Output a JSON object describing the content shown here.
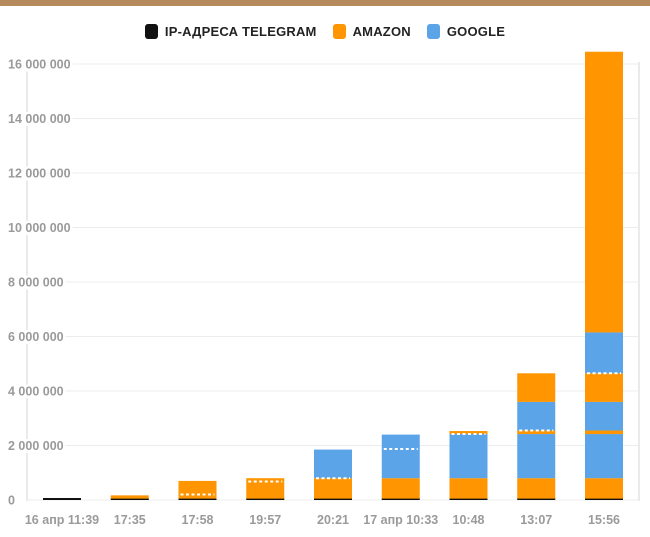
{
  "chart_data": {
    "type": "bar",
    "stacked": true,
    "title": "",
    "xlabel": "",
    "ylabel": "",
    "ylim": [
      0,
      16000000
    ],
    "yticks": [
      0,
      2000000,
      4000000,
      6000000,
      8000000,
      10000000,
      12000000,
      14000000,
      16000000
    ],
    "ytick_labels": [
      "0",
      "2 000 000",
      "4 000 000",
      "6 000 000",
      "8 000 000",
      "10 000 000",
      "12 000 000",
      "14 000 000",
      "16 000 000"
    ],
    "grid": true,
    "legend_position": "top-center",
    "legend": [
      {
        "name": "IP-АДРЕСА TELEGRAM",
        "color": "#111111"
      },
      {
        "name": "AMAZON",
        "color": "#ff9500"
      },
      {
        "name": "GOOGLE",
        "color": "#5ba4e8"
      }
    ],
    "categories": [
      "16 апр 11:39",
      "17:35",
      "17:58",
      "19:57",
      "20:21",
      "17 апр 10:33",
      "10:48",
      "13:07",
      "15:56"
    ],
    "bars": [
      {
        "segments": [
          {
            "series": "IP-АДРЕСА TELEGRAM",
            "value": 50000
          }
        ],
        "dotted_at": null
      },
      {
        "segments": [
          {
            "series": "IP-АДРЕСА TELEGRAM",
            "value": 50000
          },
          {
            "series": "AMAZON",
            "value": 120000
          }
        ],
        "dotted_at": null
      },
      {
        "segments": [
          {
            "series": "IP-АДРЕСА TELEGRAM",
            "value": 50000
          },
          {
            "series": "AMAZON",
            "value": 650000
          }
        ],
        "dotted_at": 200000
      },
      {
        "segments": [
          {
            "series": "IP-АДРЕСА TELEGRAM",
            "value": 50000
          },
          {
            "series": "AMAZON",
            "value": 750000
          }
        ],
        "dotted_at": 680000
      },
      {
        "segments": [
          {
            "series": "IP-АДРЕСА TELEGRAM",
            "value": 50000
          },
          {
            "series": "AMAZON",
            "value": 750000
          },
          {
            "series": "GOOGLE",
            "value": 1050000
          }
        ],
        "dotted_at": 800000
      },
      {
        "segments": [
          {
            "series": "IP-АДРЕСА TELEGRAM",
            "value": 50000
          },
          {
            "series": "AMAZON",
            "value": 750000
          },
          {
            "series": "GOOGLE",
            "value": 1600000
          }
        ],
        "dotted_at": 1870000
      },
      {
        "segments": [
          {
            "series": "IP-АДРЕСА TELEGRAM",
            "value": 50000
          },
          {
            "series": "AMAZON",
            "value": 750000
          },
          {
            "series": "GOOGLE",
            "value": 1620000
          },
          {
            "series": "AMAZON",
            "value": 110000
          }
        ],
        "dotted_at": 2420000
      },
      {
        "segments": [
          {
            "series": "IP-АДРЕСА TELEGRAM",
            "value": 50000
          },
          {
            "series": "AMAZON",
            "value": 750000
          },
          {
            "series": "GOOGLE",
            "value": 1620000
          },
          {
            "series": "AMAZON",
            "value": 130000
          },
          {
            "series": "GOOGLE",
            "value": 1050000
          },
          {
            "series": "AMAZON",
            "value": 1050000
          }
        ],
        "dotted_at": 2550000
      },
      {
        "segments": [
          {
            "series": "IP-АДРЕСА TELEGRAM",
            "value": 50000
          },
          {
            "series": "AMAZON",
            "value": 750000
          },
          {
            "series": "GOOGLE",
            "value": 1620000
          },
          {
            "series": "AMAZON",
            "value": 130000
          },
          {
            "series": "GOOGLE",
            "value": 1050000
          },
          {
            "series": "AMAZON",
            "value": 1050000
          },
          {
            "series": "GOOGLE",
            "value": 1500000
          },
          {
            "series": "AMAZON",
            "value": 10300000
          }
        ],
        "dotted_at": 4650000
      }
    ],
    "totals": [
      50000,
      170000,
      700000,
      800000,
      1850000,
      2400000,
      2530000,
      4650000,
      16450000
    ]
  }
}
